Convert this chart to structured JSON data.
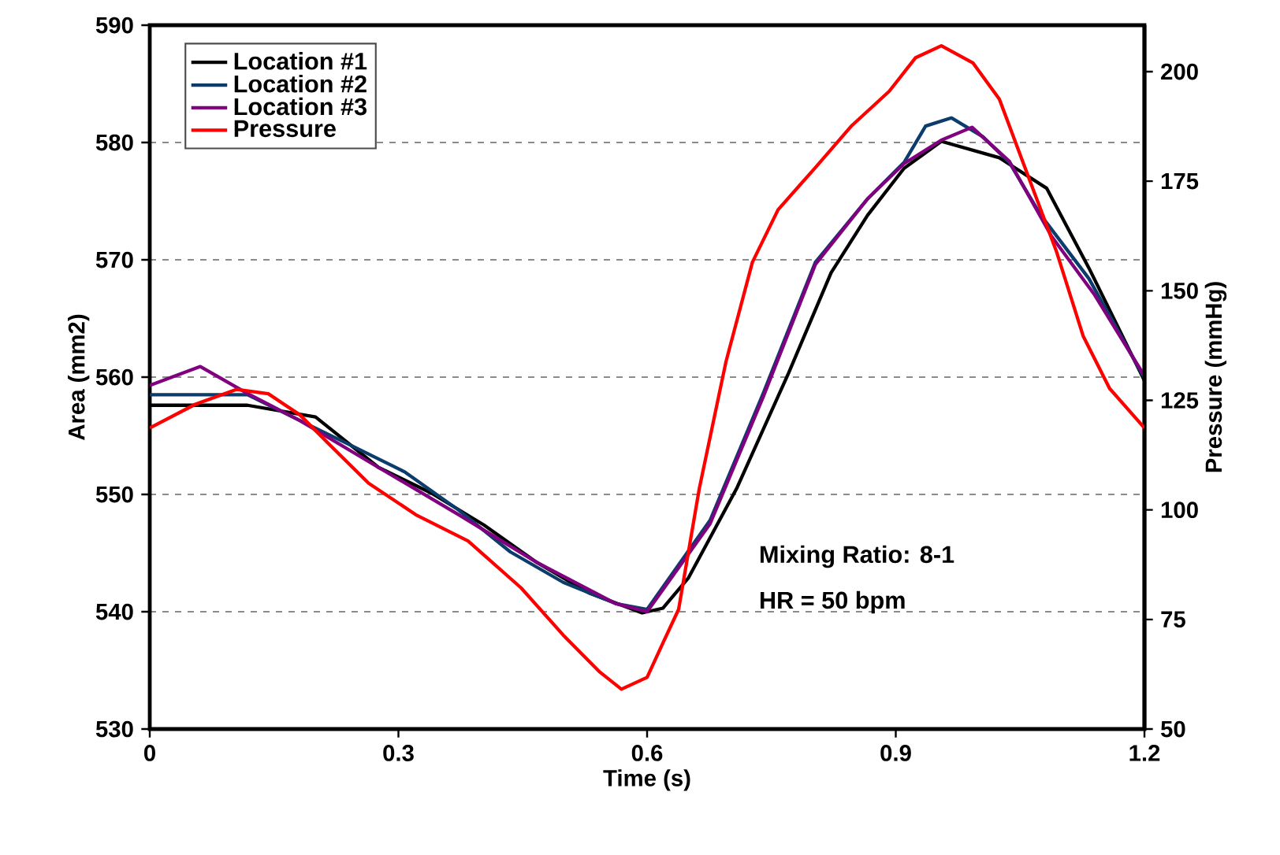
{
  "chart_data": {
    "type": "line",
    "xlabel": "Time (s)",
    "ylabel": "Area (mm2)",
    "y2label": "Pressure (mmHg)",
    "xlim": [
      0,
      1.2
    ],
    "xticks": [
      {
        "value": 0,
        "label": "0"
      },
      0.3,
      0.6,
      0.9,
      1.2
    ],
    "ylim": [
      530,
      590
    ],
    "yticks": [
      530,
      540,
      550,
      560,
      570,
      580,
      590
    ],
    "y2lim": [
      50,
      210.6
    ],
    "y2ticks": [
      50,
      75,
      100,
      125,
      150,
      175,
      200
    ],
    "grid": "y",
    "legend": "top left",
    "marker": "none",
    "line_style": "solid",
    "annotations": [
      "Mixing Ratio: 8-1",
      "HR = 50 bpm"
    ],
    "series": [
      {
        "name": "Location #1",
        "color": "#000000",
        "x": [
          0,
          0.118,
          0.2,
          0.276,
          0.34,
          0.403,
          0.467,
          0.53,
          0.594,
          0.619,
          0.65,
          0.708,
          0.771,
          0.822,
          0.866,
          0.91,
          0.955,
          1.025,
          1.082,
          1.133,
          1.2
        ],
        "values": [
          557.6,
          557.6,
          556.6,
          552.3,
          550.1,
          547.4,
          544.2,
          541.6,
          539.9,
          540.3,
          542.9,
          550.5,
          560.4,
          568.9,
          573.8,
          577.8,
          580.1,
          578.7,
          576.1,
          569.3,
          559.7
        ]
      },
      {
        "name": "Location #2",
        "color": "#0b3c6b",
        "x": [
          0,
          0.118,
          0.181,
          0.245,
          0.308,
          0.372,
          0.435,
          0.499,
          0.562,
          0.6,
          0.676,
          0.74,
          0.803,
          0.866,
          0.91,
          0.936,
          0.967,
          1.005,
          1.037,
          1.075,
          1.133,
          1.2
        ],
        "values": [
          558.5,
          558.5,
          556.3,
          554.1,
          551.9,
          548.7,
          545.1,
          542.5,
          540.7,
          540.2,
          547.8,
          558.6,
          569.8,
          575.2,
          578.3,
          581.4,
          582.1,
          580.5,
          578.3,
          573.8,
          568.4,
          559.9
        ]
      },
      {
        "name": "Location #3",
        "color": "#800080",
        "x": [
          0,
          0.061,
          0.118,
          0.181,
          0.276,
          0.372,
          0.467,
          0.562,
          0.6,
          0.676,
          0.74,
          0.803,
          0.866,
          0.91,
          0.955,
          0.992,
          1.037,
          1.088,
          1.139,
          1.2
        ],
        "values": [
          559.3,
          560.9,
          558.6,
          556.3,
          552.3,
          548.3,
          544.2,
          540.7,
          540.0,
          547.5,
          558.3,
          569.6,
          575.2,
          578.2,
          580.2,
          581.3,
          578.4,
          572.0,
          567.1,
          560.1
        ]
      },
      {
        "name": "Pressure",
        "color": "#ff0000",
        "axis": "y2",
        "x": [
          0,
          0.055,
          0.105,
          0.143,
          0.181,
          0.219,
          0.264,
          0.321,
          0.384,
          0.448,
          0.499,
          0.543,
          0.569,
          0.6,
          0.619,
          0.638,
          0.663,
          0.695,
          0.727,
          0.758,
          0.803,
          0.847,
          0.892,
          0.924,
          0.955,
          0.993,
          1.025,
          1.063,
          1.094,
          1.126,
          1.158,
          1.2
        ],
        "values": [
          118.7,
          124.1,
          127.5,
          126.5,
          121.7,
          114.5,
          106.1,
          98.9,
          92.9,
          82.2,
          71.4,
          63.0,
          59.1,
          61.8,
          69.6,
          77.3,
          104.9,
          133.7,
          156.5,
          168.5,
          178.1,
          187.7,
          195.5,
          203.2,
          205.9,
          202.0,
          193.7,
          174.5,
          158.9,
          139.7,
          127.7,
          118.7
        ]
      }
    ]
  }
}
